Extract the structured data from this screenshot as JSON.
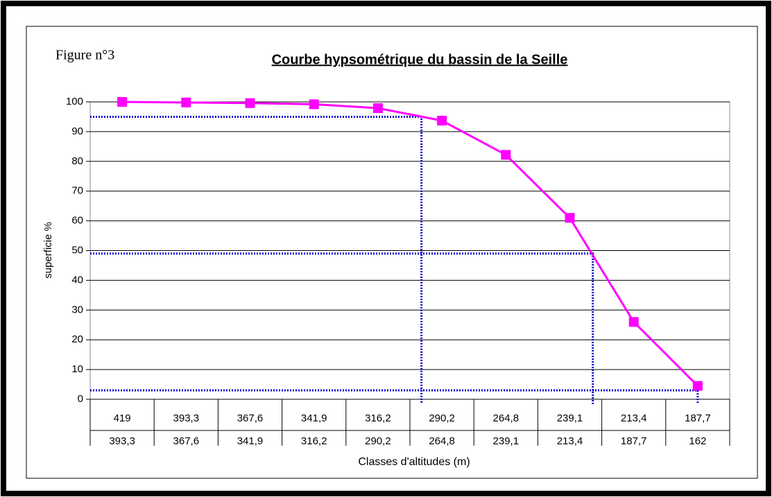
{
  "chart_data": {
    "type": "line",
    "figure_label": "Figure n°3",
    "title": "Courbe hypsométrique du bassin de la Seille",
    "ylabel": "superficie %",
    "xlabel": "Classes d'altitudes (m)",
    "categories": [
      [
        "419",
        "393,3"
      ],
      [
        "393,3",
        "367,6"
      ],
      [
        "367,6",
        "341,9"
      ],
      [
        "341,9",
        "316,2"
      ],
      [
        "316,2",
        "290,2"
      ],
      [
        "290,2",
        "264,8"
      ],
      [
        "264,8",
        "239,1"
      ],
      [
        "239,1",
        "213,4"
      ],
      [
        "213,4",
        "187,7"
      ],
      [
        "187,7",
        "162"
      ]
    ],
    "series": [
      {
        "name": "superficie",
        "color": "#ff00ff",
        "values": [
          100,
          99.8,
          99.6,
          99.2,
          97.9,
          93.7,
          82.2,
          61,
          26,
          4.5
        ]
      }
    ],
    "ylim": [
      0,
      100
    ],
    "yticks": [
      0,
      10,
      20,
      30,
      40,
      50,
      60,
      70,
      80,
      90,
      100
    ],
    "grid": true,
    "reference_lines": [
      {
        "y": 95,
        "x": 4.68
      },
      {
        "y": 49,
        "x": 7.36
      },
      {
        "y": 3,
        "x": 9
      }
    ],
    "reference_color": "#0000cc"
  }
}
